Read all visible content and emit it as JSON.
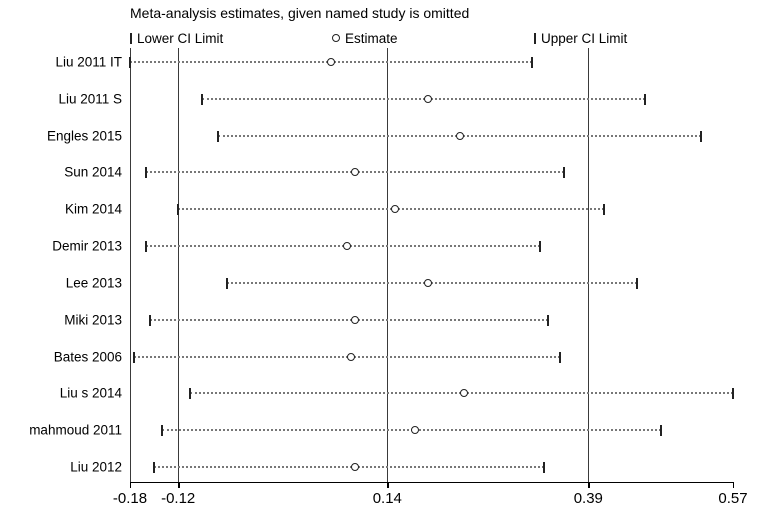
{
  "title": "Meta-analysis estimates, given named study is omitted",
  "legend": {
    "items": [
      {
        "symbol": "lower-ci-bar",
        "label": "Lower CI Limit"
      },
      {
        "symbol": "estimate-circle",
        "label": "Estimate"
      },
      {
        "symbol": "upper-ci-bar",
        "label": "Upper CI Limit"
      }
    ]
  },
  "chart_data": {
    "type": "scatter",
    "subtype": "leave-one-out sensitivity forest plot",
    "title": "Meta-analysis estimates, given named study is omitted",
    "xlim": [
      -0.18,
      0.57
    ],
    "xticks": [
      {
        "value": -0.18,
        "label": "-0.18"
      },
      {
        "value": -0.12,
        "label": "-0.12"
      },
      {
        "value": 0.14,
        "label": "0.14"
      },
      {
        "value": 0.39,
        "label": "0.39"
      },
      {
        "value": 0.57,
        "label": "0.57"
      }
    ],
    "reference_lines": {
      "overall_lower": -0.12,
      "overall_estimate": 0.14,
      "overall_upper": 0.39
    },
    "grid": false,
    "legend_position": "top",
    "studies": [
      {
        "label": "Liu 2011 IT",
        "lower": -0.18,
        "estimate": 0.07,
        "upper": 0.32
      },
      {
        "label": "Liu 2011 S",
        "lower": -0.09,
        "estimate": 0.19,
        "upper": 0.46
      },
      {
        "label": "Engles 2015",
        "lower": -0.07,
        "estimate": 0.23,
        "upper": 0.53
      },
      {
        "label": "Sun 2014",
        "lower": -0.16,
        "estimate": 0.1,
        "upper": 0.36
      },
      {
        "label": "Kim 2014",
        "lower": -0.12,
        "estimate": 0.15,
        "upper": 0.41
      },
      {
        "label": "Demir 2013",
        "lower": -0.16,
        "estimate": 0.09,
        "upper": 0.33
      },
      {
        "label": "Lee 2013",
        "lower": -0.06,
        "estimate": 0.19,
        "upper": 0.45
      },
      {
        "label": "Miki 2013",
        "lower": -0.155,
        "estimate": 0.1,
        "upper": 0.34
      },
      {
        "label": "Bates 2006",
        "lower": -0.175,
        "estimate": 0.095,
        "upper": 0.355
      },
      {
        "label": "Liu s 2014",
        "lower": -0.105,
        "estimate": 0.235,
        "upper": 0.57
      },
      {
        "label": "mahmoud 2011",
        "lower": -0.14,
        "estimate": 0.175,
        "upper": 0.48
      },
      {
        "label": "Liu 2012",
        "lower": -0.15,
        "estimate": 0.1,
        "upper": 0.335
      }
    ],
    "colors": {
      "foreground": "#000000",
      "background": "#ffffff",
      "dotted_line": "#777777"
    }
  }
}
